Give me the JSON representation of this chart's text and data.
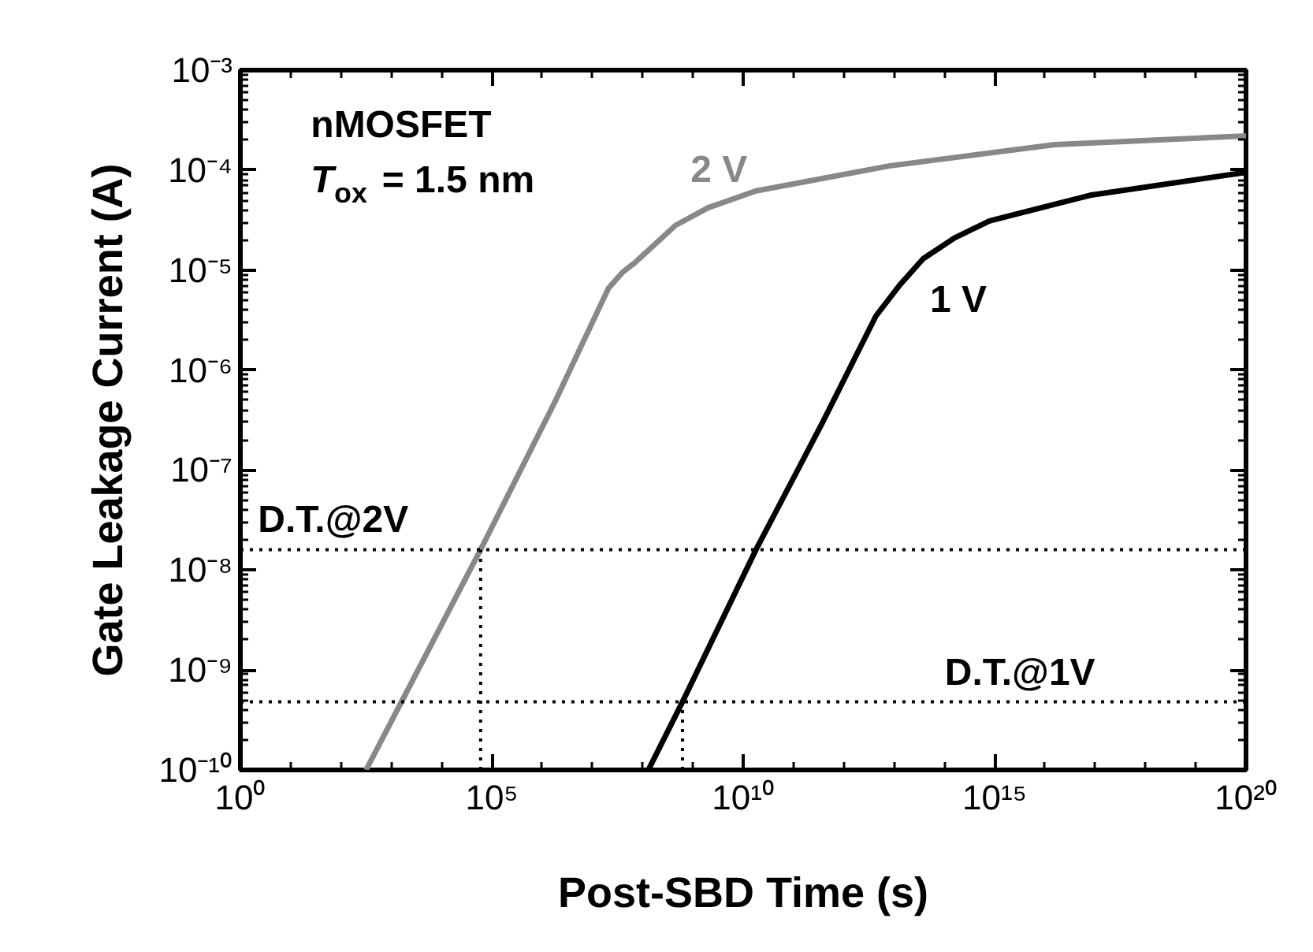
{
  "chart_data": {
    "type": "line",
    "xlabel": "Post-SBD Time (s)",
    "ylabel": "Gate Leakage Current (A)",
    "log": "xy",
    "xlim": [
      1,
      1e+20
    ],
    "ylim": [
      1e-10,
      0.001
    ],
    "xticks": [
      {
        "value": 1,
        "label": "10⁰"
      },
      {
        "value": 100000.0,
        "label": "10⁵"
      },
      {
        "value": 10000000000.0,
        "label": "10¹⁰"
      },
      {
        "value": 1000000000000000.0,
        "label": "10¹⁵"
      },
      {
        "value": 1e+20,
        "label": "10²⁰"
      }
    ],
    "yticks": [
      {
        "value": 1e-10,
        "label": "10⁻¹⁰"
      },
      {
        "value": 1e-09,
        "label": "10⁻⁹"
      },
      {
        "value": 1e-08,
        "label": "10⁻⁸"
      },
      {
        "value": 1e-07,
        "label": "10⁻⁷"
      },
      {
        "value": 1e-06,
        "label": "10⁻⁶"
      },
      {
        "value": 1e-05,
        "label": "10⁻⁵"
      },
      {
        "value": 0.0001,
        "label": "10⁻⁴"
      },
      {
        "value": 0.001,
        "label": "10⁻³"
      }
    ],
    "grid": false,
    "marker": "none",
    "series": [
      {
        "name": "2 V",
        "color": "#888888",
        "x": [
          316,
          60000.0,
          1800000.0,
          21000000.0,
          40000000.0,
          72000000.0,
          450000000.0,
          2000000000.0,
          18000000000.0,
          7900000000000.0,
          1.6e+16,
          1e+20
        ],
        "values": [
          1e-10,
          1.6e-08,
          4.8e-07,
          6.6e-06,
          9.5e-06,
          1.2e-05,
          2.8e-05,
          4.2e-05,
          6.2e-05,
          0.00011,
          0.00018,
          0.00022
        ]
      },
      {
        "name": "1 V",
        "color": "#000000",
        "x": [
          130000000.0,
          620000000.0,
          18000000000.0,
          380000000000.0,
          4400000000000.0,
          13000000000000.0,
          38000000000000.0,
          160000000000000.0,
          790000000000000.0,
          7.9e+16,
          1e+20
        ],
        "values": [
          1e-10,
          4.8e-10,
          1.6e-08,
          3e-07,
          3.5e-06,
          7.1e-06,
          1.3e-05,
          2.1e-05,
          3.1e-05,
          5.6e-05,
          9.5e-05
        ]
      },
      {
        "color": "#000000",
        "line_style": "dotted",
        "x": [
          60000.0,
          60000.0
        ],
        "values": [
          1e-10,
          1.6e-08
        ]
      },
      {
        "color": "#000000",
        "line_style": "dotted",
        "x": [
          620000000.0,
          620000000.0
        ],
        "values": [
          1e-10,
          4.8e-10
        ]
      }
    ],
    "ref_lines": [
      {
        "axis": "y",
        "value": 1.6e-08,
        "label": "D.T.@2V",
        "color": "#000000",
        "line_style": "dotted"
      },
      {
        "axis": "y",
        "value": 4.8e-10,
        "label": "D.T.@1V",
        "color": "#000000",
        "line_style": "dotted"
      }
    ],
    "annotations": [
      "nMOSFET",
      "T$_{ox}$ = 1.5 nm"
    ]
  }
}
